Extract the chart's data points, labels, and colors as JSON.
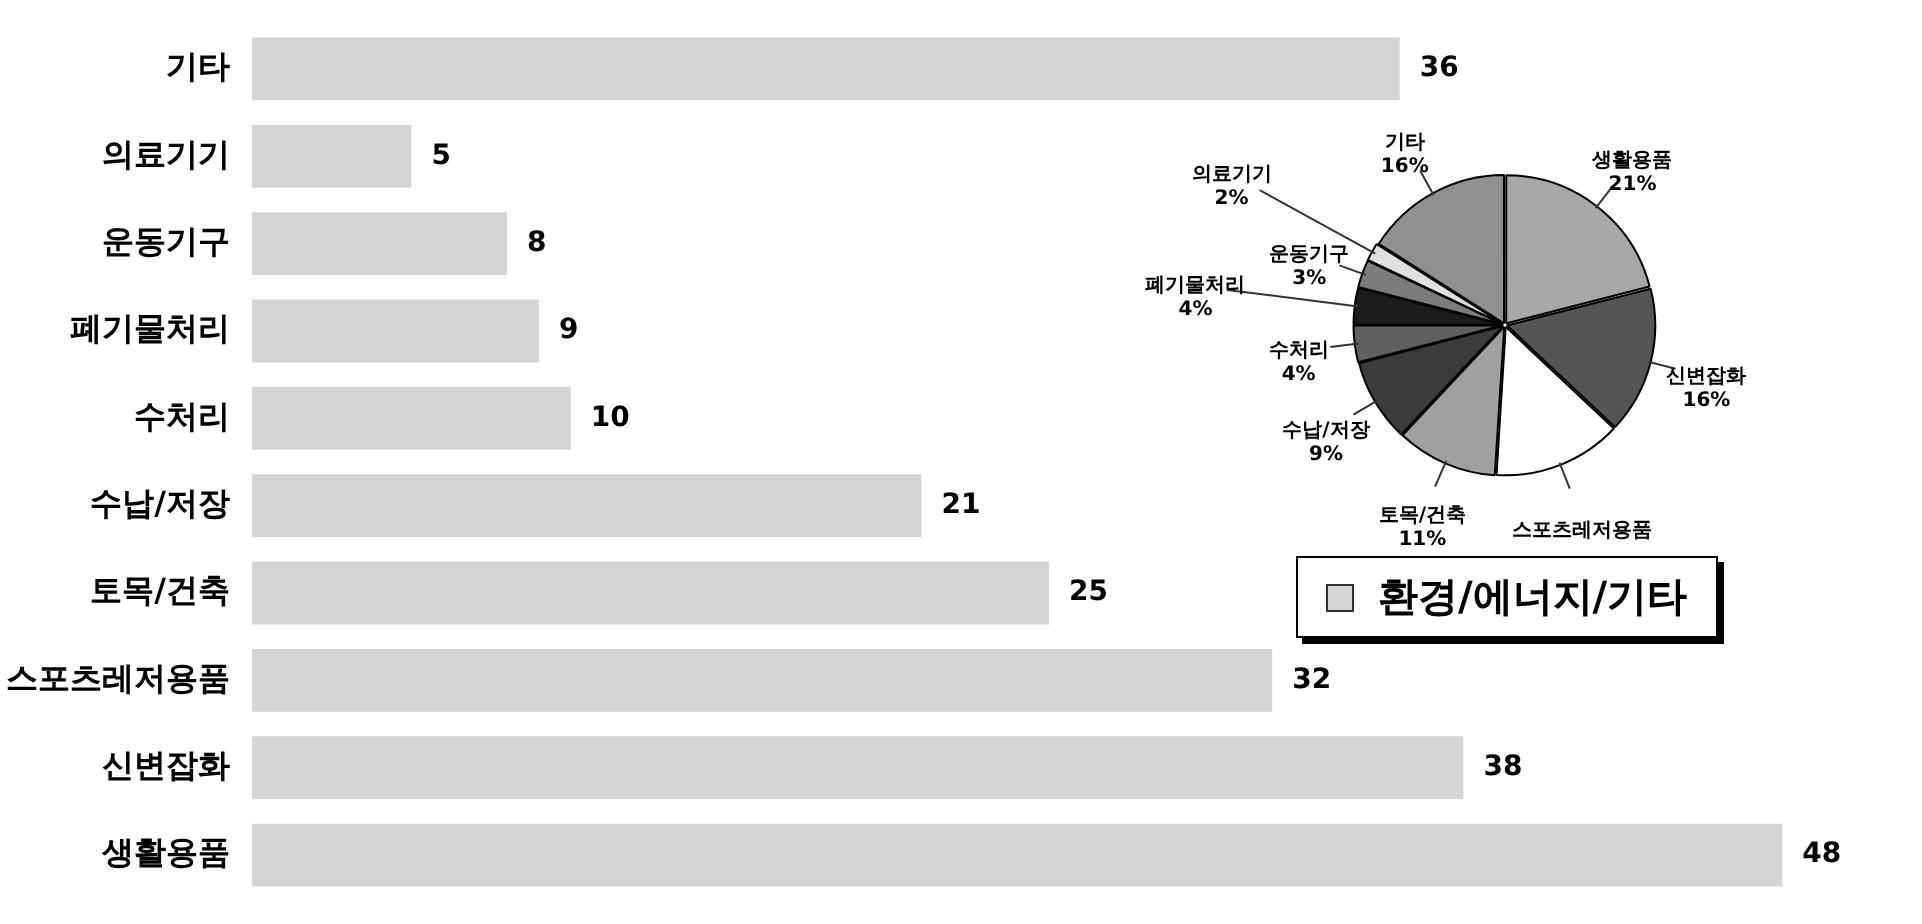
{
  "chart_data": [
    {
      "type": "bar",
      "orientation": "horizontal",
      "data_labels": true,
      "grid": false,
      "legend": "right",
      "categories": [
        "기타",
        "의료기기",
        "운동기구",
        "폐기물처리",
        "수처리",
        "수납/저장",
        "토목/건축",
        "스포츠레저용품",
        "신변잡화",
        "생활용품"
      ],
      "series": [
        {
          "name": "환경/에너지/기타",
          "color": "#d4d4d4",
          "values": [
            36,
            5,
            8,
            9,
            10,
            21,
            25,
            32,
            38,
            48
          ]
        }
      ]
    },
    {
      "type": "pie",
      "legend": false,
      "categories": [
        "생활용품",
        "신변잡화",
        "스포츠레저용품",
        "토목/건축",
        "수납/저장",
        "수처리",
        "폐기물처리",
        "운동기구",
        "의료기기",
        "기타"
      ],
      "values": [
        21,
        16,
        14,
        11,
        9,
        4,
        4,
        3,
        2,
        16
      ],
      "value_labels": [
        "21%",
        "16%",
        null,
        "11%",
        "9%",
        "4%",
        "4%",
        "3%",
        "2%",
        "16%"
      ],
      "colors": [
        "#a8a8a8",
        "#555555",
        "#ffffff",
        "#a0a0a0",
        "#3c3c3c",
        "#606060",
        "#1c1c1c",
        "#7c7c7c",
        "#e0e0e0",
        "#909090"
      ]
    }
  ]
}
